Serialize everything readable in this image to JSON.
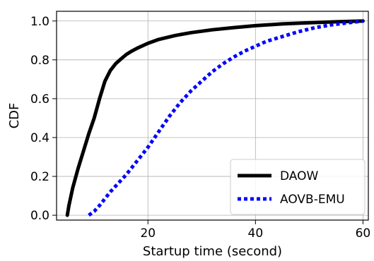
{
  "chart_data": {
    "type": "line",
    "xlabel": "Startup time (second)",
    "ylabel": "CDF",
    "xlim": [
      3,
      61
    ],
    "ylim": [
      -0.025,
      1.05
    ],
    "x_ticks": [
      20,
      40,
      60
    ],
    "x_tick_labels": [
      "20",
      "40",
      "60"
    ],
    "y_ticks": [
      0.0,
      0.2,
      0.4,
      0.6,
      0.8,
      1.0
    ],
    "y_tick_labels": [
      "0.0",
      "0.2",
      "0.4",
      "0.6",
      "0.8",
      "1.0"
    ],
    "grid": true,
    "legend_position": "bottom-right",
    "series": [
      {
        "name": "DAOW",
        "color": "#000000",
        "style": "solid",
        "x": [
          5.0,
          5.3,
          6.0,
          7.0,
          8.0,
          9.0,
          10.0,
          11.0,
          12.0,
          13.0,
          14.0,
          15.0,
          16.0,
          17.0,
          18.0,
          20.0,
          22.0,
          25.0,
          28.0,
          32.0,
          36.0,
          40.0,
          45.0,
          50.0,
          55.0,
          60.0
        ],
        "y": [
          0.0,
          0.05,
          0.14,
          0.24,
          0.33,
          0.42,
          0.5,
          0.6,
          0.69,
          0.745,
          0.78,
          0.805,
          0.828,
          0.845,
          0.86,
          0.885,
          0.905,
          0.925,
          0.94,
          0.955,
          0.966,
          0.976,
          0.985,
          0.991,
          0.996,
          1.0
        ]
      },
      {
        "name": "AOVB-EMU",
        "color": "#0000ff",
        "style": "dotted",
        "x": [
          9.0,
          10.0,
          11.0,
          12.0,
          13.0,
          14.0,
          15.0,
          16.0,
          17.0,
          18.0,
          20.0,
          22.0,
          24.0,
          26.0,
          28.0,
          30.0,
          32.0,
          34.0,
          36.0,
          38.0,
          40.0,
          42.0,
          45.0,
          48.0,
          51.0,
          54.0,
          57.0,
          60.0
        ],
        "y": [
          0.0,
          0.02,
          0.05,
          0.085,
          0.12,
          0.15,
          0.18,
          0.21,
          0.245,
          0.28,
          0.35,
          0.43,
          0.51,
          0.58,
          0.64,
          0.69,
          0.74,
          0.78,
          0.815,
          0.845,
          0.87,
          0.895,
          0.92,
          0.945,
          0.965,
          0.98,
          0.99,
          1.0
        ]
      }
    ]
  }
}
